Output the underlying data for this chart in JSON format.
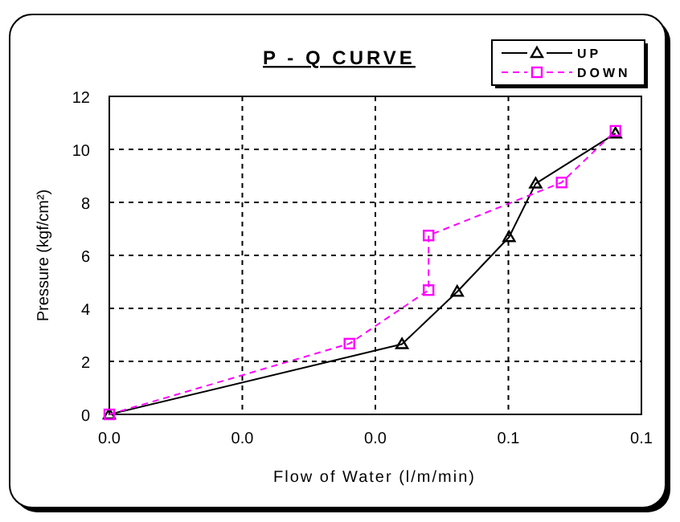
{
  "chart_data": {
    "type": "line",
    "title": "P - Q CURVE",
    "xlabel": "Flow of Water (l/m/min)",
    "ylabel": "Pressure (kgf/cm²)",
    "xlim": [
      0,
      0.08
    ],
    "xticks": [
      {
        "value": 0,
        "label": "0.0"
      },
      {
        "value": 0.02,
        "label": "0.0"
      },
      {
        "value": 0.04,
        "label": "0.0"
      },
      {
        "value": 0.06,
        "label": "0.1"
      },
      {
        "value": 0.08,
        "label": "0.1"
      }
    ],
    "ylim": [
      0,
      12
    ],
    "yticks": [
      0,
      2,
      4,
      6,
      8,
      10,
      12
    ],
    "grid": true,
    "legend": "top right",
    "series": [
      {
        "name": "UP",
        "color": "#000000",
        "marker": "triangle",
        "line_style": "solid",
        "x": [
          0,
          0.044,
          0.0523,
          0.0601,
          0.0641,
          0.0761
        ],
        "values": [
          0,
          2.65,
          4.63,
          6.69,
          8.71,
          10.6
        ]
      },
      {
        "name": "DOWN",
        "color": "#ff00ff",
        "marker": "square",
        "line_style": "dashed",
        "x": [
          0,
          0.0361,
          0.048,
          0.048,
          0.068,
          0.0761
        ],
        "values": [
          0,
          2.67,
          4.69,
          6.75,
          8.75,
          10.7
        ]
      }
    ]
  }
}
